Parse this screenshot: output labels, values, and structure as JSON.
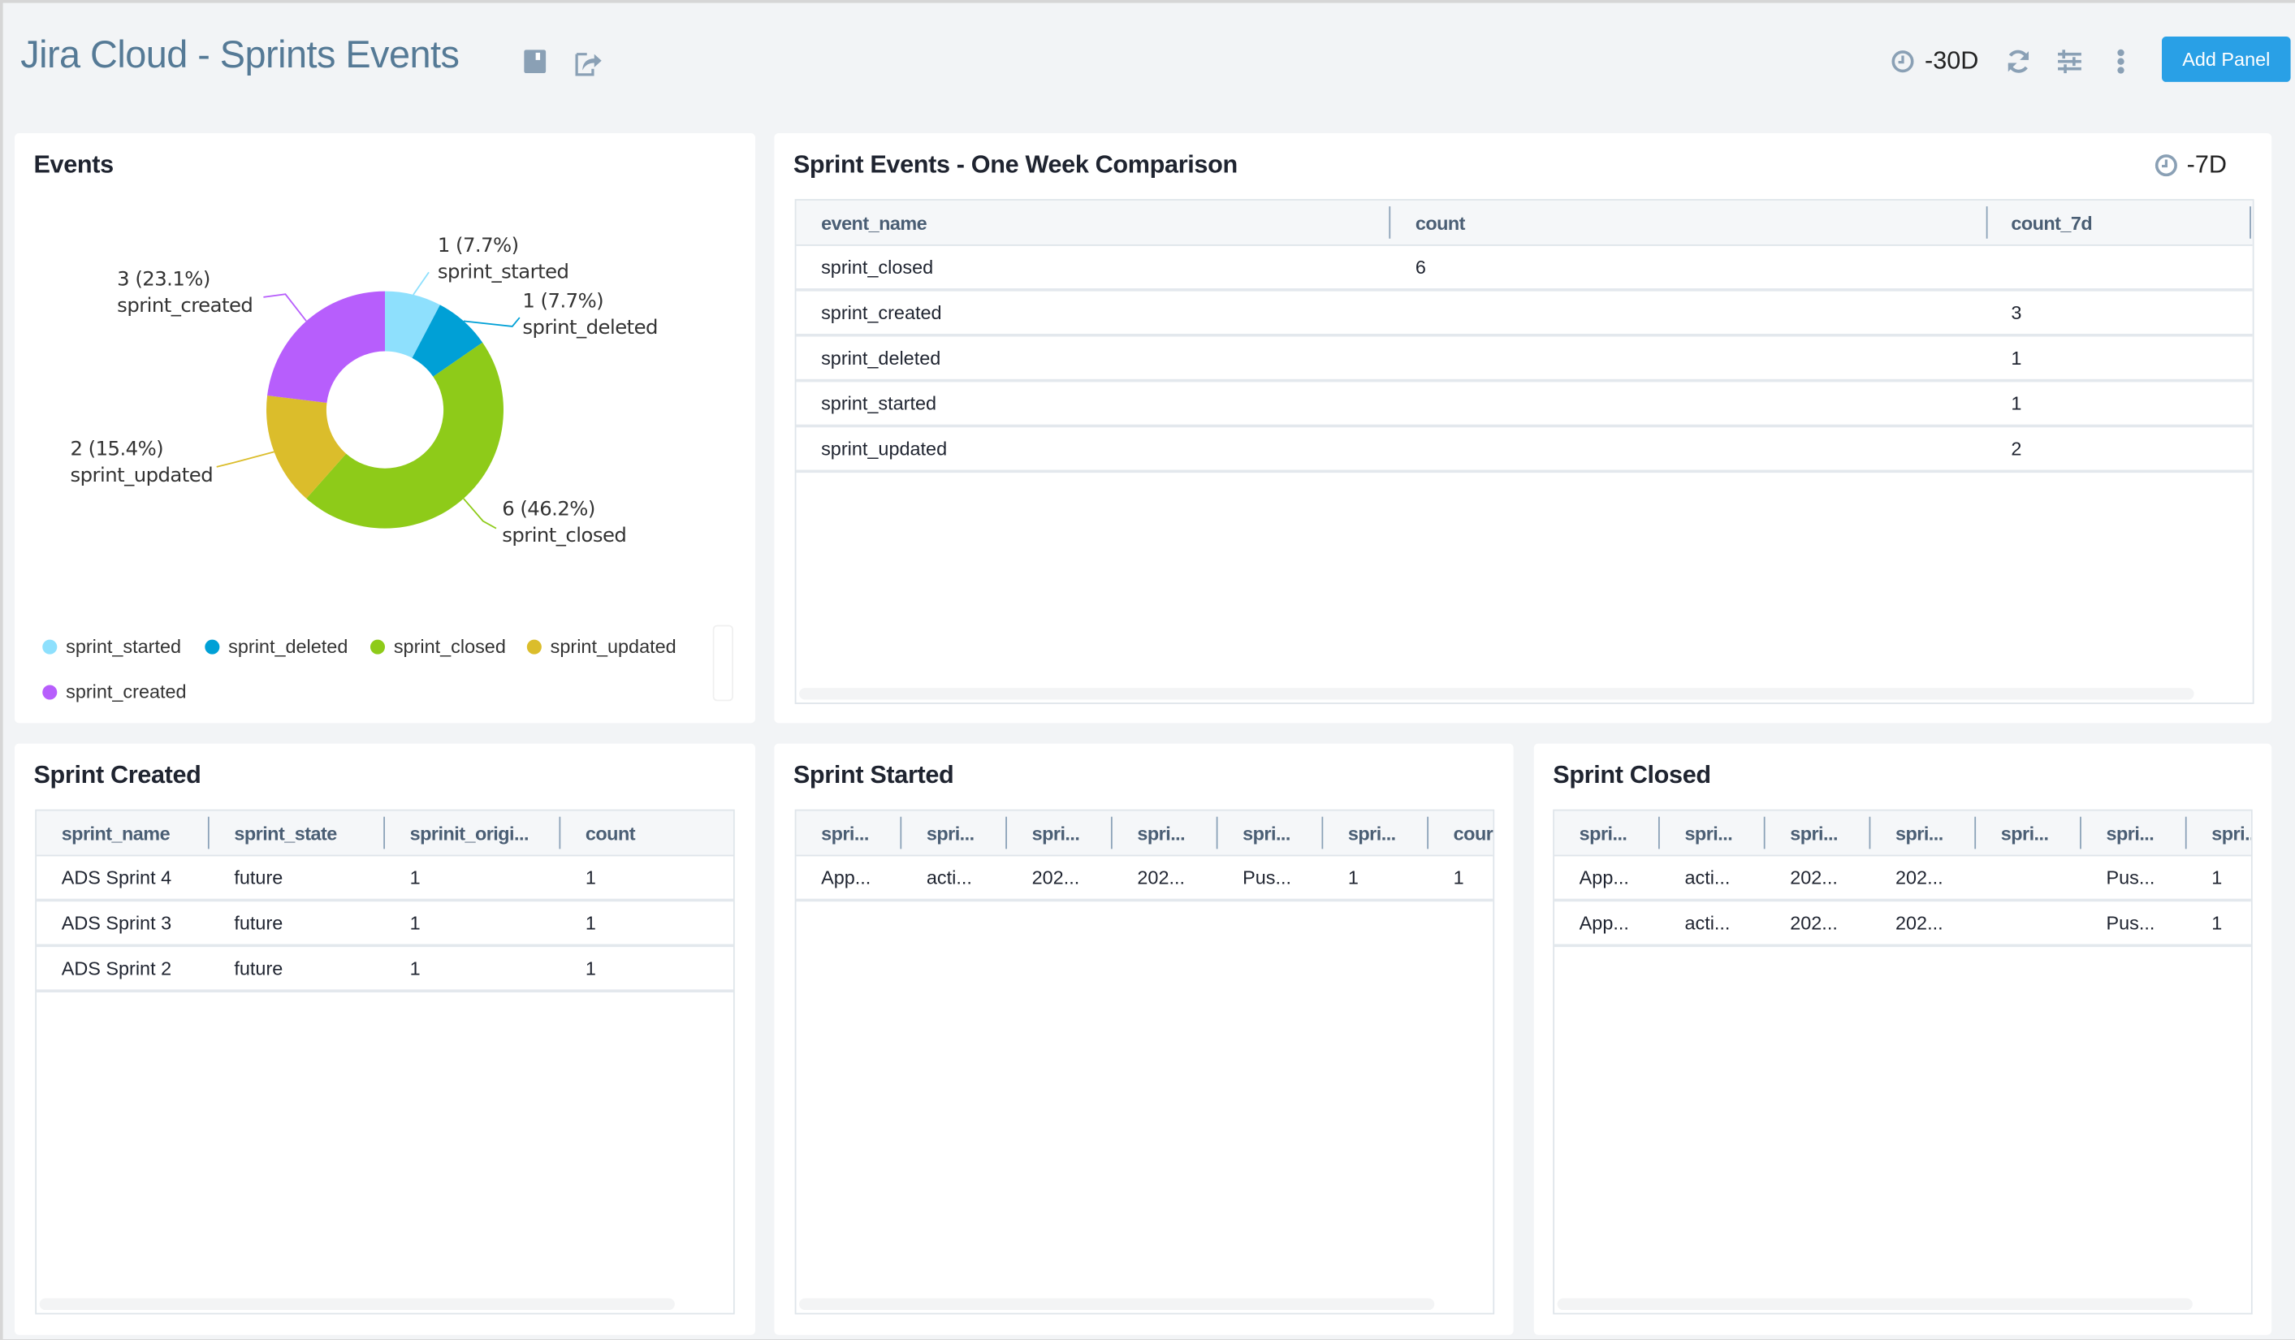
{
  "header": {
    "title": "Jira Cloud - Sprints Events",
    "time_range": "-30D",
    "add_panel_label": "Add Panel",
    "icons": [
      "save-icon",
      "share-icon",
      "clock-icon",
      "refresh-icon",
      "filter-sliders-icon",
      "more-vertical-icon"
    ]
  },
  "events_panel": {
    "title": "Events"
  },
  "chart_data": {
    "type": "pie",
    "donut": true,
    "slices": [
      {
        "label": "sprint_started",
        "value": 1,
        "percent": "7.7%",
        "color": "#8ee0fd"
      },
      {
        "label": "sprint_deleted",
        "value": 1,
        "percent": "7.7%",
        "color": "#00a0d6"
      },
      {
        "label": "sprint_closed",
        "value": 6,
        "percent": "46.2%",
        "color": "#8ecb19"
      },
      {
        "label": "sprint_updated",
        "value": 2,
        "percent": "15.4%",
        "color": "#dbbd2b"
      },
      {
        "label": "sprint_created",
        "value": 3,
        "percent": "23.1%",
        "color": "#b75efc"
      }
    ],
    "data_labels": [
      "1 (7.7%)",
      "1 (7.7%)",
      "6 (46.2%)",
      "2 (15.4%)",
      "3 (23.1%)"
    ],
    "legend": [
      "sprint_started",
      "sprint_deleted",
      "sprint_closed",
      "sprint_updated",
      "sprint_created"
    ],
    "legend_placement": "bottom"
  },
  "comparison_panel": {
    "title": "Sprint Events - One Week Comparison",
    "time_range": "-7D",
    "columns": [
      "event_name",
      "count",
      "count_7d"
    ],
    "rows": [
      [
        "sprint_closed",
        "6",
        ""
      ],
      [
        "sprint_created",
        "",
        "3"
      ],
      [
        "sprint_deleted",
        "",
        "1"
      ],
      [
        "sprint_started",
        "",
        "1"
      ],
      [
        "sprint_updated",
        "",
        "2"
      ]
    ]
  },
  "created_panel": {
    "title": "Sprint Created",
    "columns": [
      "sprint_name",
      "sprint_state",
      "sprinit_origi...",
      "count"
    ],
    "rows": [
      [
        "ADS Sprint 4",
        "future",
        "1",
        "1"
      ],
      [
        "ADS Sprint 3",
        "future",
        "1",
        "1"
      ],
      [
        "ADS Sprint 2",
        "future",
        "1",
        "1"
      ]
    ]
  },
  "started_panel": {
    "title": "Sprint Started",
    "columns": [
      "spri...",
      "spri...",
      "spri...",
      "spri...",
      "spri...",
      "spri...",
      "cour"
    ],
    "rows": [
      [
        "App...",
        "acti...",
        "202...",
        "202...",
        "Pus...",
        "1",
        "1"
      ]
    ]
  },
  "closed_panel": {
    "title": "Sprint Closed",
    "columns": [
      "spri...",
      "spri...",
      "spri...",
      "spri...",
      "spri...",
      "spri...",
      "spri..."
    ],
    "rows": [
      [
        "App...",
        "acti...",
        "202...",
        "202...",
        "",
        "Pus...",
        "1"
      ],
      [
        "App...",
        "acti...",
        "202...",
        "202...",
        "",
        "Pus...",
        "1"
      ]
    ]
  }
}
